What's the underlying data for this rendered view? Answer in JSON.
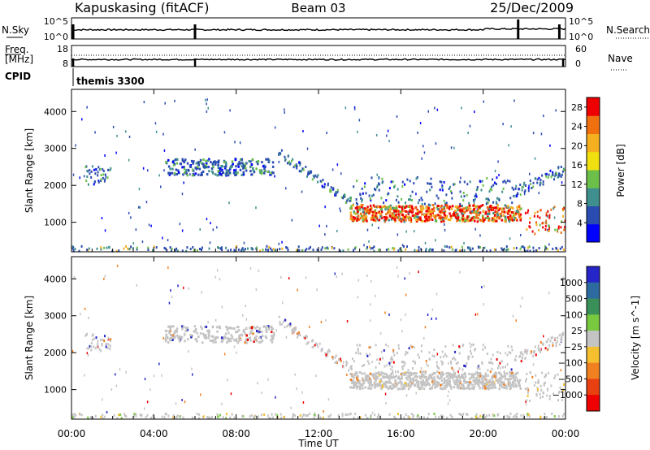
{
  "header": {
    "station": "Kapuskasing (fitACF)",
    "beam": "Beam 03",
    "date": "25/Dec/2009"
  },
  "chart_data": [
    {
      "type": "line",
      "name": "noise-panel",
      "left_label": "N.Sky",
      "right_label": "N.Search",
      "left_ticks": [
        "10^5",
        "10^0"
      ],
      "right_ticks": [
        "10^5",
        "10^0"
      ],
      "series": [
        {
          "name": "N.Sky",
          "style": "solid"
        },
        {
          "name": "N.Search",
          "style": "dotted"
        }
      ],
      "spikes_hours": [
        0.08,
        6.0,
        21.7,
        23.7
      ]
    },
    {
      "type": "line",
      "name": "freq-nave-panel",
      "left_label_line1": "Freq.",
      "left_label_line2": "[MHz]",
      "right_label": "Nave",
      "left_ticks": [
        "18",
        "8"
      ],
      "right_ticks": [
        "60",
        "0"
      ],
      "series": [
        {
          "name": "Freq.",
          "style": "solid"
        },
        {
          "name": "Nave",
          "style": "dotted"
        }
      ],
      "spikes_hours": [
        0.08,
        6.0,
        24.0
      ]
    },
    {
      "type": "table",
      "name": "cpid-row",
      "label": "CPID",
      "entries": [
        {
          "start_hour": 0.08,
          "text": "themis 3300"
        }
      ]
    },
    {
      "type": "heatmap",
      "name": "power",
      "ylabel": "Slant Range [km]",
      "ylim": [
        200,
        4600
      ],
      "yticks": [
        1000,
        2000,
        3000,
        4000
      ],
      "colorbar_label": "Power [dB]",
      "colorbar_ticks": [
        4,
        8,
        12,
        16,
        20,
        24,
        28
      ],
      "colorbar_range": [
        0,
        30
      ],
      "colors": [
        "#0000ff",
        "#2a4bb0",
        "#3f8f8f",
        "#6cc04a",
        "#f0e010",
        "#f5b020",
        "#f07010",
        "#ee0000"
      ]
    },
    {
      "type": "heatmap",
      "name": "velocity",
      "ylabel": "Slant Range [km]",
      "ylim": [
        200,
        4600
      ],
      "yticks": [
        1000,
        2000,
        3000,
        4000
      ],
      "colorbar_label": "Velocity [m s^-1]",
      "colorbar_ticks": [
        "1000",
        "500",
        "100",
        "25",
        "−25",
        "−100",
        "−500",
        "−1000"
      ],
      "colors": [
        "#2525c8",
        "#2d6aa0",
        "#3a9058",
        "#78c840",
        "#c4c4c4",
        "#f5c030",
        "#f08020",
        "#e84010",
        "#ee0000"
      ]
    }
  ],
  "time_axis": {
    "label": "Time UT",
    "xlim": [
      0,
      24
    ],
    "ticks": [
      "00:00",
      "04:00",
      "08:00",
      "12:00",
      "16:00",
      "20:00",
      "00:00"
    ]
  }
}
